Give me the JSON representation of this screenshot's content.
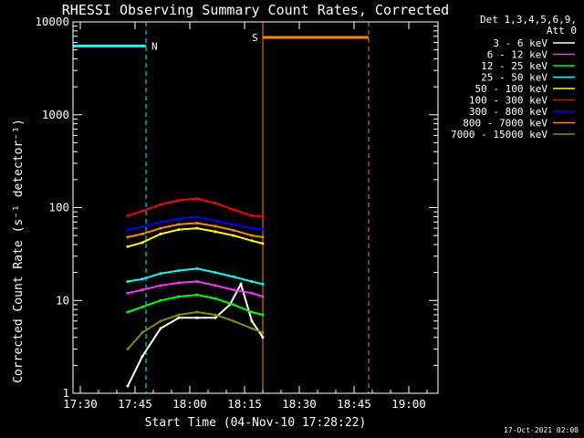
{
  "chart_data": {
    "type": "line",
    "title": "RHESSI Observing Summary Count Rates, Corrected",
    "xlabel": "Start Time (04-Nov-10 17:28:22)",
    "ylabel": "Corrected Count Rate (s⁻¹ detector⁻¹)",
    "yscale": "log",
    "ylim": [
      1,
      10000
    ],
    "xlim": [
      "17:28",
      "19:08"
    ],
    "x_ticks": [
      "17:30",
      "17:45",
      "18:00",
      "18:15",
      "18:30",
      "18:45",
      "19:00"
    ],
    "y_ticks": [
      "1",
      "10",
      "100",
      "1000",
      "10000"
    ],
    "legend_header": [
      "Det 1,3,4,5,6,9,",
      "Att 0"
    ],
    "legend_position": "right",
    "footer_date": "17-Oct-2021 02:00",
    "series": [
      {
        "name": "3 - 6 keV",
        "color": "#ffffff",
        "x": [
          "17:43",
          "17:47",
          "17:52",
          "17:57",
          "18:02",
          "18:07",
          "18:11",
          "18:14",
          "18:17",
          "18:20"
        ],
        "values": [
          1.2,
          2.5,
          5,
          6.5,
          6.5,
          6.5,
          9,
          15,
          6,
          4
        ]
      },
      {
        "name": "6 - 12 keV",
        "color": "#ff33ff",
        "x": [
          "17:43",
          "17:47",
          "17:52",
          "17:57",
          "18:02",
          "18:07",
          "18:12",
          "18:17",
          "18:20"
        ],
        "values": [
          12,
          13,
          14.5,
          15.5,
          16,
          14.5,
          13,
          12,
          11
        ]
      },
      {
        "name": "12 - 25 keV",
        "color": "#00ff00",
        "x": [
          "17:43",
          "17:47",
          "17:52",
          "17:57",
          "18:02",
          "18:07",
          "18:12",
          "18:17",
          "18:20"
        ],
        "values": [
          7.5,
          8.5,
          10,
          11,
          11.5,
          10.5,
          9,
          7.5,
          7
        ]
      },
      {
        "name": "25 - 50 keV",
        "color": "#00ffff",
        "x": [
          "17:43",
          "17:47",
          "17:52",
          "17:57",
          "18:02",
          "18:07",
          "18:12",
          "18:17",
          "18:20"
        ],
        "values": [
          16,
          17,
          19.5,
          21,
          22,
          20,
          18,
          16,
          15
        ]
      },
      {
        "name": "50 - 100 keV",
        "color": "#ffff00",
        "x": [
          "17:43",
          "17:47",
          "17:52",
          "17:57",
          "18:02",
          "18:07",
          "18:12",
          "18:17",
          "18:20"
        ],
        "values": [
          38,
          42,
          52,
          58,
          60,
          55,
          50,
          44,
          41
        ]
      },
      {
        "name": "100 - 300 keV",
        "color": "#ff0000",
        "x": [
          "17:43",
          "17:47",
          "17:52",
          "17:57",
          "18:02",
          "18:07",
          "18:12",
          "18:17",
          "18:20"
        ],
        "values": [
          82,
          92,
          108,
          120,
          125,
          112,
          95,
          82,
          80
        ]
      },
      {
        "name": "300 - 800 keV",
        "color": "#0000ff",
        "x": [
          "17:43",
          "17:47",
          "17:52",
          "17:57",
          "18:02",
          "18:07",
          "18:12",
          "18:17",
          "18:20"
        ],
        "values": [
          58,
          62,
          70,
          76,
          80,
          72,
          66,
          60,
          58
        ]
      },
      {
        "name": "800 - 7000 keV",
        "color": "#ff8800",
        "x": [
          "17:43",
          "17:47",
          "17:52",
          "17:57",
          "18:02",
          "18:07",
          "18:12",
          "18:17",
          "18:20"
        ],
        "values": [
          48,
          52,
          60,
          66,
          68,
          63,
          57,
          50,
          48
        ]
      },
      {
        "name": "7000 - 15000 keV",
        "color": "#8b8b00",
        "x": [
          "17:43",
          "17:47",
          "17:52",
          "17:57",
          "18:02",
          "18:07",
          "18:12",
          "18:17",
          "18:20"
        ],
        "values": [
          3,
          4.5,
          6,
          7,
          7.5,
          7,
          6,
          5,
          4.5
        ]
      }
    ],
    "annotations": [
      {
        "label": "N",
        "color": "#00ffff",
        "x_start": "17:28",
        "x_end": "17:48",
        "y": 5500
      },
      {
        "label": "S",
        "color": "#ff8800",
        "x_start": "18:20",
        "x_end": "18:49",
        "y": 6800
      }
    ]
  }
}
